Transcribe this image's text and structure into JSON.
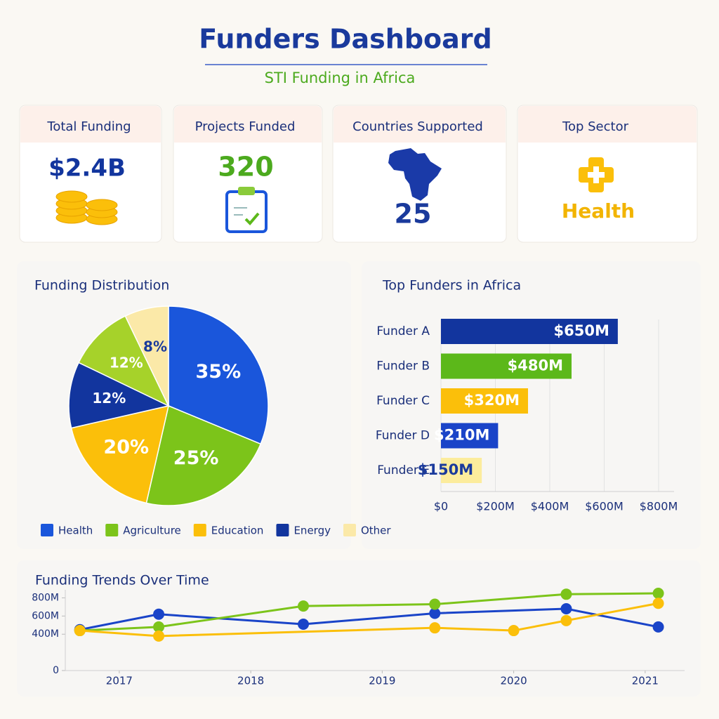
{
  "header": {
    "title": "Funders Dashboard",
    "subtitle": "STI Funding in Africa"
  },
  "kpis": [
    {
      "label": "Total Funding",
      "value": "$2.4B"
    },
    {
      "label": "Projects Funded",
      "value": "320"
    },
    {
      "label": "Countries Supported",
      "value": "25"
    },
    {
      "label": "Top Sector",
      "value": "Health"
    }
  ],
  "chart_data": [
    {
      "type": "pie",
      "title": "Funding Distribution",
      "categories": [
        "Health",
        "Agriculture",
        "Education",
        "Energy",
        null,
        "Other"
      ],
      "values": [
        35,
        25,
        20,
        12,
        12,
        8
      ],
      "value_labels": [
        "35%",
        "25%",
        "20%",
        "12%",
        "12%",
        "8%"
      ],
      "colors": [
        "#1a56db",
        "#7cc41a",
        "#fbbf0a",
        "#12359e",
        "#a6d22a",
        "#fbe9a8"
      ],
      "legend": "bottom"
    },
    {
      "type": "barh",
      "title": "Top Funders in Africa",
      "categories": [
        "Funder A",
        "Funder B",
        "Funder C",
        "Funder D",
        "Funder E"
      ],
      "values": [
        650,
        480,
        320,
        210,
        150
      ],
      "value_labels": [
        "$650M",
        "$480M",
        "$320M",
        "$210M",
        "$150M"
      ],
      "colors": [
        "#12359e",
        "#5cb81a",
        "#fbbf0a",
        "#1a44c8",
        "#fcec9c"
      ],
      "xlim": [
        0,
        800
      ],
      "xticks": [
        {
          "value": 0,
          "label": "$0"
        },
        {
          "value": 200,
          "label": "$200M"
        },
        {
          "value": 400,
          "label": "$400M"
        },
        {
          "value": 600,
          "label": "$600M"
        },
        {
          "value": 800,
          "label": "$800M"
        }
      ],
      "grid": true
    },
    {
      "type": "line",
      "title": "Funding Trends Over Time",
      "series": [
        {
          "color": "#1a44c8",
          "x": [
            2016.7,
            2017.3,
            2018.4,
            2019.4,
            2020.4,
            2021.1
          ],
          "values": [
            450,
            620,
            510,
            630,
            680,
            480
          ]
        },
        {
          "color": "#7cc41a",
          "x": [
            2016.7,
            2017.3,
            2018.4,
            2019.4,
            2020.4,
            2021.1
          ],
          "values": [
            440,
            480,
            710,
            730,
            840,
            850
          ]
        },
        {
          "color": "#fbbf0a",
          "x": [
            2016.7,
            2017.3,
            2019.4,
            2020,
            2020.4,
            2021.1
          ],
          "values": [
            440,
            380,
            470,
            440,
            550,
            740
          ]
        }
      ],
      "xlim": [
        2016.6,
        2021.3
      ],
      "xticks": [
        2017,
        2018,
        2019,
        2020,
        2021
      ],
      "ylim": [
        0,
        850
      ],
      "yticks": [
        0,
        {
          "value": 400,
          "label": "400M"
        },
        {
          "value": 600,
          "label": "600M"
        },
        {
          "value": 800,
          "label": "800M"
        }
      ]
    }
  ]
}
